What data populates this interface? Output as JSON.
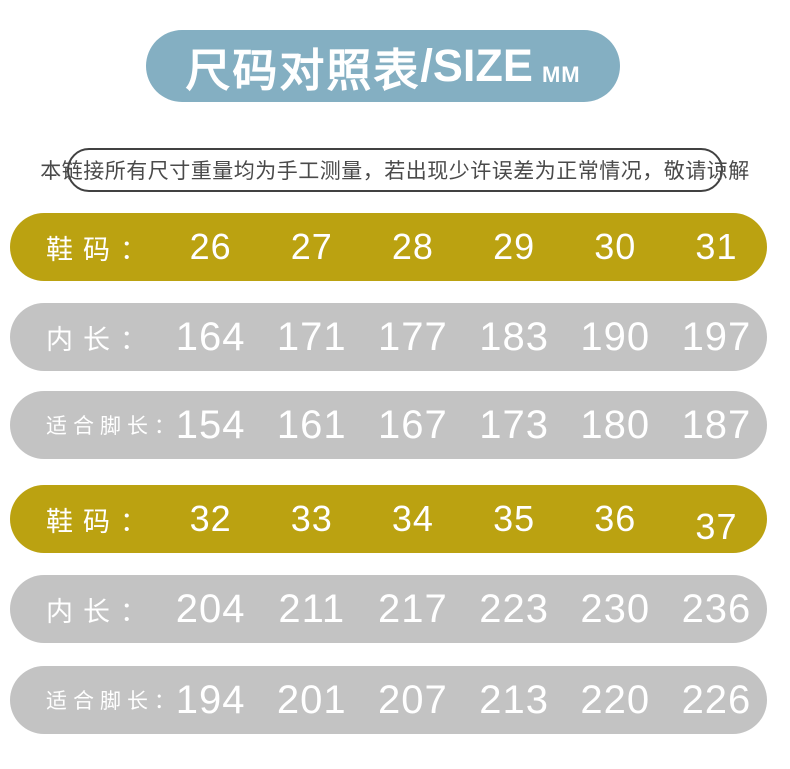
{
  "header": {
    "title_cn": "尺码对照表",
    "title_en": "/SIZE",
    "title_unit": "MM"
  },
  "notice": {
    "text": "本链接所有尺寸重量均为手工测量，若出现少许误差为正常情况，敬请谅解"
  },
  "colors": {
    "banner_blue": "#84afc2",
    "row_yellow": "#bba211",
    "row_gray": "#c3c3c3",
    "text_white": "#ffffff",
    "notice_border": "#414141",
    "notice_text": "#4a4a4a"
  },
  "chart_data": {
    "type": "table",
    "title": "尺码对照表/SIZE MM",
    "unit": "MM",
    "note": "本链接所有尺寸重量均为手工测量，若出现少许误差为正常情况，敬请谅解",
    "rows": [
      {
        "label": "鞋码：",
        "values": [
          26,
          27,
          28,
          29,
          30,
          31
        ]
      },
      {
        "label": "内长：",
        "values": [
          164,
          171,
          177,
          183,
          190,
          197
        ]
      },
      {
        "label": "适合脚长：",
        "values": [
          154,
          161,
          167,
          173,
          180,
          187
        ]
      },
      {
        "label": "鞋码：",
        "values": [
          32,
          33,
          34,
          35,
          36,
          37
        ]
      },
      {
        "label": "内长：",
        "values": [
          204,
          211,
          217,
          223,
          230,
          236
        ]
      },
      {
        "label": "适合脚长：",
        "values": [
          194,
          201,
          207,
          213,
          220,
          226
        ]
      }
    ]
  }
}
